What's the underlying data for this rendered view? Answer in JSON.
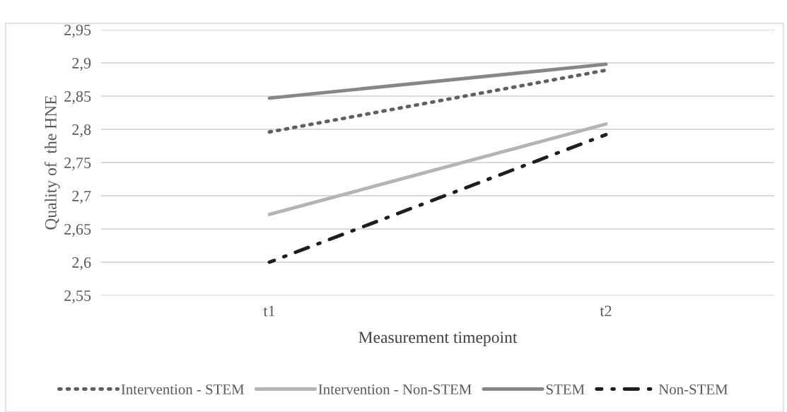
{
  "chart_data": {
    "type": "line",
    "xlabel": "Measurement timepoint",
    "ylabel": "Quality of  the HNE",
    "categories": [
      "t1",
      "t2"
    ],
    "series": [
      {
        "name": "Intervention - STEM",
        "color": "#5f5f5f",
        "line_style": "dotted",
        "values": [
          2.796,
          2.889
        ]
      },
      {
        "name": "Intervention - Non-STEM",
        "color": "#b4b4b4",
        "line_style": "solid",
        "values": [
          2.672,
          2.808
        ]
      },
      {
        "name": "STEM",
        "color": "#878787",
        "line_style": "solid",
        "values": [
          2.847,
          2.898
        ]
      },
      {
        "name": "Non-STEM",
        "color": "#1e1e1e",
        "line_style": "dashed",
        "values": [
          2.6,
          2.792
        ]
      }
    ],
    "ylim": [
      2.55,
      2.95
    ],
    "yticks": [
      {
        "value": 2.55,
        "label": "2,55"
      },
      {
        "value": 2.6,
        "label": "2,6"
      },
      {
        "value": 2.65,
        "label": "2,65"
      },
      {
        "value": 2.7,
        "label": "2,7"
      },
      {
        "value": 2.75,
        "label": "2,75"
      },
      {
        "value": 2.8,
        "label": "2,8"
      },
      {
        "value": 2.85,
        "label": "2,85"
      },
      {
        "value": 2.9,
        "label": "2,9"
      },
      {
        "value": 2.95,
        "label": "2,95"
      }
    ],
    "grid": "y",
    "legend": "bottom",
    "marker": "none"
  }
}
